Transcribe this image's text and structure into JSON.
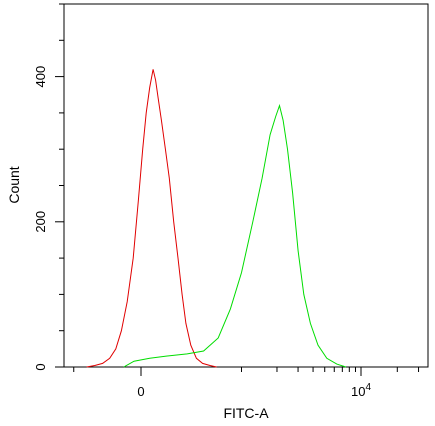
{
  "chart_data": {
    "type": "line",
    "xlabel": "FITC-A",
    "ylabel": "Count",
    "ylim": [
      0,
      500
    ],
    "x_scale": "biexponential",
    "x_tick_labels": [
      {
        "text": "0",
        "x": 0
      },
      {
        "text": "10",
        "sup": "4",
        "x": 10000
      }
    ],
    "y_tick_labels": [
      {
        "text": "0",
        "y": 0
      },
      {
        "text": "200",
        "y": 200
      },
      {
        "text": "400",
        "y": 400
      }
    ],
    "grid": false,
    "legend": "none",
    "series": [
      {
        "color": "#e00000",
        "points": [
          [
            -370,
            0
          ],
          [
            -300,
            2
          ],
          [
            -240,
            5
          ],
          [
            -190,
            12
          ],
          [
            -150,
            25
          ],
          [
            -115,
            50
          ],
          [
            -80,
            90
          ],
          [
            -45,
            150
          ],
          [
            -15,
            230
          ],
          [
            10,
            300
          ],
          [
            30,
            350
          ],
          [
            50,
            385
          ],
          [
            70,
            410
          ],
          [
            85,
            395
          ],
          [
            100,
            370
          ],
          [
            120,
            340
          ],
          [
            145,
            300
          ],
          [
            170,
            260
          ],
          [
            200,
            200
          ],
          [
            230,
            150
          ],
          [
            260,
            100
          ],
          [
            290,
            60
          ],
          [
            330,
            30
          ],
          [
            380,
            12
          ],
          [
            440,
            5
          ],
          [
            520,
            2
          ],
          [
            600,
            0
          ]
        ]
      },
      {
        "color": "#00dd00",
        "points": [
          [
            -100,
            0
          ],
          [
            -40,
            8
          ],
          [
            50,
            12
          ],
          [
            150,
            15
          ],
          [
            300,
            18
          ],
          [
            450,
            22
          ],
          [
            620,
            40
          ],
          [
            800,
            80
          ],
          [
            1000,
            130
          ],
          [
            1250,
            200
          ],
          [
            1500,
            260
          ],
          [
            1750,
            320
          ],
          [
            1950,
            345
          ],
          [
            2100,
            360
          ],
          [
            2250,
            340
          ],
          [
            2450,
            300
          ],
          [
            2700,
            240
          ],
          [
            3000,
            160
          ],
          [
            3350,
            100
          ],
          [
            3800,
            60
          ],
          [
            4400,
            30
          ],
          [
            5200,
            12
          ],
          [
            6300,
            4
          ],
          [
            7500,
            0
          ]
        ]
      }
    ]
  }
}
